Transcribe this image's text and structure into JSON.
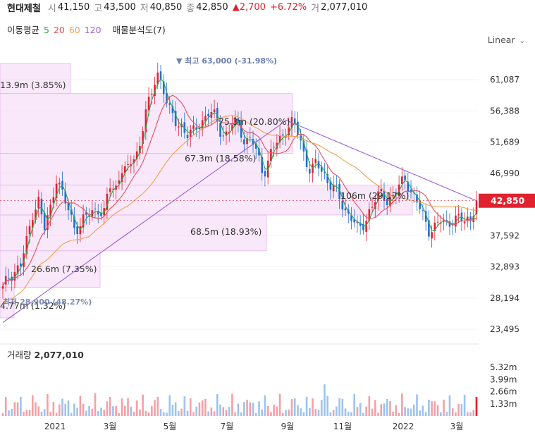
{
  "header": {
    "name": "현대제철",
    "open_label": "시",
    "open": "41,150",
    "high_label": "고",
    "high": "43,500",
    "low_label": "저",
    "low": "40,850",
    "close_label": "종",
    "close": "42,850",
    "change": "2,700",
    "change_pct": "+6.72%",
    "vol_label": "거",
    "volume": "2,077,010"
  },
  "ma_row": {
    "label": "이동평균",
    "p5": "5",
    "p20": "20",
    "p60": "60",
    "p120": "120",
    "profile": "매물분석도(7)"
  },
  "scale_label": "Linear",
  "colors": {
    "up": "#e0222f",
    "down": "#1f6fd1",
    "ma5": "#2aa84a",
    "ma20": "#e8505b",
    "ma60": "#f0a050",
    "ma120": "#9a5fd6",
    "profile": "#f2d6f5",
    "annot": "#6a7fb0"
  },
  "chart_data": {
    "type": "candlestick",
    "y_ticks": [
      "61,087",
      "56,388",
      "51,689",
      "46,990",
      "42,850",
      "37,592",
      "32,893",
      "28,194",
      "23,495"
    ],
    "y_tick_values": [
      61087,
      56388,
      51689,
      46990,
      42850,
      37592,
      32893,
      28194,
      23495
    ],
    "current_price": "42,850",
    "x_ticks": [
      "2021",
      "3월",
      "5월",
      "7월",
      "9월",
      "11월",
      "2022",
      "3월"
    ],
    "high_annotation": "▼ 최고 63,000 (-31.98%)",
    "low_annotation": "최저 28,900 (48.27%)",
    "volume_profile": [
      {
        "label": "13.9m (3.85%)",
        "price_low": 59000,
        "price_high": 63500
      },
      {
        "label": "75.3m (20.80%)",
        "price_low": 50000,
        "price_high": 59000
      },
      {
        "label": "67.3m (18.58%)",
        "price_low": 45200,
        "price_high": 50000
      },
      {
        "label": "106m (29.17%)",
        "price_low": 40700,
        "price_high": 45200
      },
      {
        "label": "68.5m (18.93%)",
        "price_low": 35300,
        "price_high": 40700
      },
      {
        "label": "26.6m (7.35%)",
        "price_low": 29800,
        "price_high": 35300
      },
      {
        "label": "4.77m (1.32%)",
        "price_low": 25200,
        "price_high": 29800
      }
    ],
    "price_path": [
      29.5,
      31.5,
      32.2,
      33.1,
      36.5,
      41.0,
      43.0,
      38.5,
      41.5,
      46.5,
      44.0,
      41.5,
      39.2,
      38.8,
      40.5,
      41.0,
      42.0,
      40.2,
      45.2,
      44.5,
      47.8,
      47.0,
      49.5,
      50.5,
      56.0,
      58.0,
      62.8,
      60.0,
      56.5,
      55.0,
      54.5,
      52.5,
      53.0,
      54.6,
      55.0,
      56.1,
      55.5,
      53.0,
      52.5,
      55.0,
      54.0,
      51.5,
      52.0,
      50.0,
      47.0,
      49.0,
      51.5,
      52.5,
      53.8,
      54.5,
      53.0,
      49.5,
      47.0,
      48.5,
      47.5,
      45.5,
      44.6,
      43.0,
      41.2,
      40.2,
      38.3,
      39.5,
      41.5,
      43.0,
      44.0,
      43.0,
      43.5,
      45.0,
      46.5,
      44.0,
      42.5,
      40.5,
      38.5,
      38.8,
      39.8,
      39.5,
      40.1,
      40.0,
      39.8,
      40.3,
      42.85
    ],
    "volume_title": "거래량",
    "volume_value": "2,077,010",
    "volume_ticks": [
      "5.32m",
      "3.99m",
      "2.66m",
      "1.33m"
    ],
    "volume_tick_values": [
      5.32,
      3.99,
      2.66,
      1.33
    ],
    "grid": true
  }
}
